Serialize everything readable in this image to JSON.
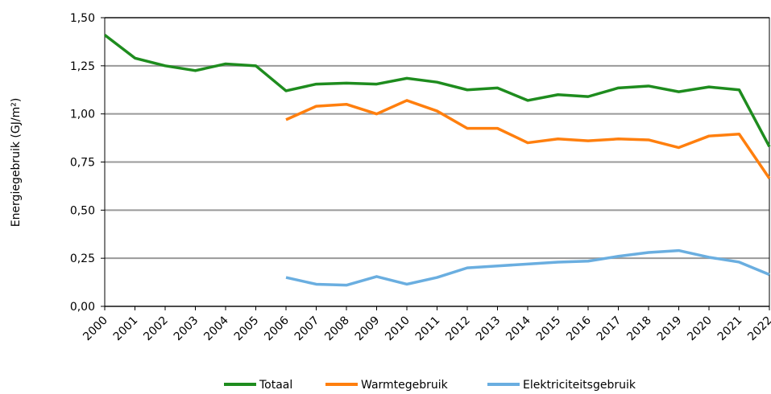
{
  "chart_data": {
    "type": "line",
    "y_label": "Energiegebruik (GJ/m²)",
    "categories": [
      "2000",
      "2001",
      "2002",
      "2003",
      "2004",
      "2005",
      "2006",
      "2007",
      "2008",
      "2009",
      "2010",
      "2011",
      "2012",
      "2013",
      "2014",
      "2015",
      "2016",
      "2017",
      "2018",
      "2019",
      "2020",
      "2021",
      "2022"
    ],
    "series": [
      {
        "name": "Totaal",
        "color": "#1e8c1e",
        "values": [
          1.41,
          1.29,
          1.25,
          1.225,
          1.26,
          1.25,
          1.12,
          1.155,
          1.16,
          1.155,
          1.185,
          1.165,
          1.125,
          1.135,
          1.07,
          1.1,
          1.09,
          1.135,
          1.145,
          1.115,
          1.14,
          1.125,
          0.83
        ]
      },
      {
        "name": "Warmtegebruik",
        "color": "#ff7f0e",
        "values": [
          null,
          null,
          null,
          null,
          null,
          null,
          0.97,
          1.04,
          1.05,
          1.0,
          1.07,
          1.015,
          0.925,
          0.925,
          0.85,
          0.87,
          0.86,
          0.87,
          0.865,
          0.825,
          0.885,
          0.895,
          0.665
        ]
      },
      {
        "name": "Elektriciteitsgebruik",
        "color": "#6aaee0",
        "values": [
          null,
          null,
          null,
          null,
          null,
          null,
          0.15,
          0.115,
          0.11,
          0.155,
          0.115,
          0.15,
          0.2,
          0.21,
          0.22,
          0.23,
          0.235,
          0.26,
          0.28,
          0.29,
          0.255,
          0.23,
          0.165
        ]
      }
    ],
    "ylim": [
      0,
      1.5
    ],
    "yticks": [
      {
        "value": 0,
        "label": "0,00"
      },
      {
        "value": 0.25,
        "label": "0,25"
      },
      {
        "value": 0.5,
        "label": "0,50"
      },
      {
        "value": 0.75,
        "label": "0,75"
      },
      {
        "value": 1,
        "label": "1,00"
      },
      {
        "value": 1.25,
        "label": "1,25"
      },
      {
        "value": 1.5,
        "label": "1,50"
      }
    ],
    "grid": true,
    "legend": "bottom"
  }
}
